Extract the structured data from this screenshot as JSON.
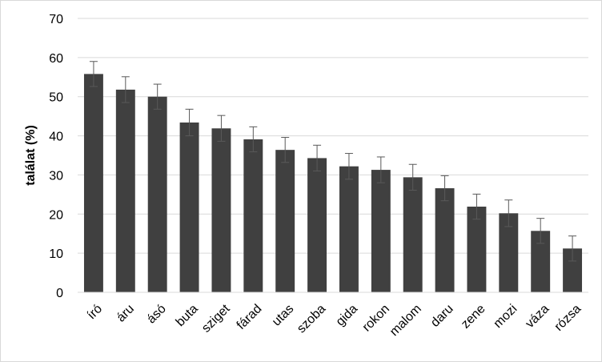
{
  "chart_data": {
    "type": "bar",
    "title": "",
    "xlabel": "",
    "ylabel": "találat (%)",
    "ylim": [
      0,
      70
    ],
    "yticks": [
      0,
      10,
      20,
      30,
      40,
      50,
      60,
      70
    ],
    "grid": true,
    "legend": "none",
    "bar_color": "#404040",
    "grid_color": "#d9d9d9",
    "error_bar_color": "#595959",
    "categories": [
      "író",
      "áru",
      "ásó",
      "buta",
      "sziget",
      "fárad",
      "utas",
      "szoba",
      "gida",
      "rokon",
      "malom",
      "daru",
      "zene",
      "mozi",
      "váza",
      "rózsa"
    ],
    "values": [
      55.8,
      51.8,
      50.0,
      43.4,
      41.9,
      39.1,
      36.4,
      34.3,
      32.2,
      31.3,
      29.4,
      26.6,
      21.9,
      20.2,
      15.7,
      11.2
    ],
    "error": [
      3.2,
      3.3,
      3.2,
      3.4,
      3.3,
      3.2,
      3.2,
      3.3,
      3.3,
      3.3,
      3.3,
      3.2,
      3.2,
      3.4,
      3.2,
      3.2
    ]
  }
}
